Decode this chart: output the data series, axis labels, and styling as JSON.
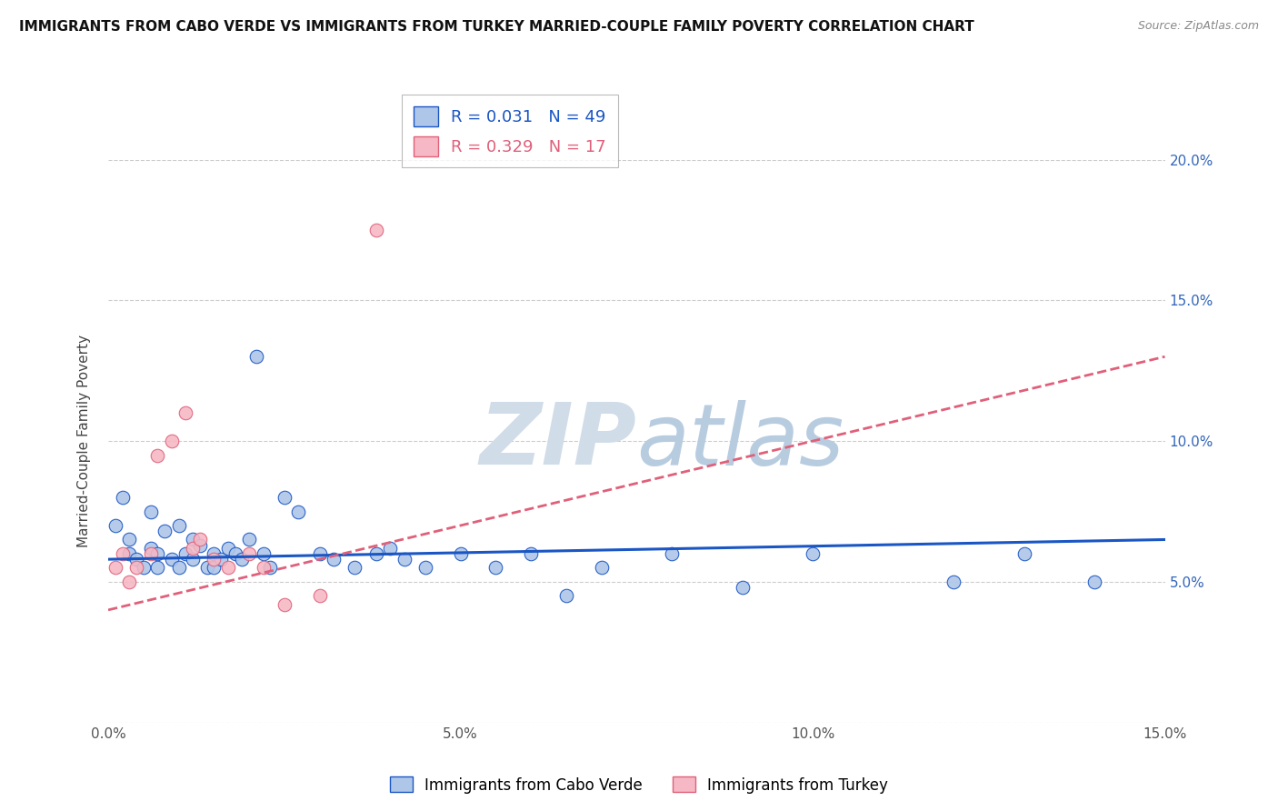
{
  "title": "IMMIGRANTS FROM CABO VERDE VS IMMIGRANTS FROM TURKEY MARRIED-COUPLE FAMILY POVERTY CORRELATION CHART",
  "source": "Source: ZipAtlas.com",
  "ylabel": "Married-Couple Family Poverty",
  "xlabel_legend1": "Immigrants from Cabo Verde",
  "xlabel_legend2": "Immigrants from Turkey",
  "R1": 0.031,
  "N1": 49,
  "R2": 0.329,
  "N2": 17,
  "xlim": [
    0.0,
    0.15
  ],
  "ylim": [
    0.0,
    0.2
  ],
  "x_ticks": [
    0.0,
    0.05,
    0.1,
    0.15
  ],
  "x_tick_labels": [
    "0.0%",
    "5.0%",
    "10.0%",
    "15.0%"
  ],
  "y_ticks": [
    0.0,
    0.05,
    0.1,
    0.15,
    0.2
  ],
  "right_y_tick_labels": [
    "",
    "5.0%",
    "10.0%",
    "15.0%",
    "20.0%"
  ],
  "color_cabo": "#aec6e8",
  "color_turkey": "#f5b8c4",
  "line_color_cabo": "#1a56c4",
  "line_color_turkey": "#e0607a",
  "watermark_zip": "ZIP",
  "watermark_atlas": "atlas",
  "cabo_x": [
    0.001,
    0.002,
    0.003,
    0.003,
    0.004,
    0.005,
    0.006,
    0.006,
    0.007,
    0.007,
    0.008,
    0.009,
    0.01,
    0.01,
    0.011,
    0.012,
    0.012,
    0.013,
    0.014,
    0.015,
    0.015,
    0.016,
    0.017,
    0.018,
    0.019,
    0.02,
    0.021,
    0.022,
    0.023,
    0.025,
    0.027,
    0.03,
    0.032,
    0.035,
    0.038,
    0.04,
    0.042,
    0.045,
    0.05,
    0.055,
    0.06,
    0.065,
    0.07,
    0.08,
    0.09,
    0.1,
    0.12,
    0.13,
    0.14
  ],
  "cabo_y": [
    0.07,
    0.08,
    0.065,
    0.06,
    0.058,
    0.055,
    0.075,
    0.062,
    0.06,
    0.055,
    0.068,
    0.058,
    0.07,
    0.055,
    0.06,
    0.065,
    0.058,
    0.063,
    0.055,
    0.06,
    0.055,
    0.058,
    0.062,
    0.06,
    0.058,
    0.065,
    0.13,
    0.06,
    0.055,
    0.08,
    0.075,
    0.06,
    0.058,
    0.055,
    0.06,
    0.062,
    0.058,
    0.055,
    0.06,
    0.055,
    0.06,
    0.045,
    0.055,
    0.06,
    0.048,
    0.06,
    0.05,
    0.06,
    0.05
  ],
  "turkey_x": [
    0.001,
    0.002,
    0.003,
    0.004,
    0.006,
    0.007,
    0.009,
    0.011,
    0.012,
    0.013,
    0.015,
    0.017,
    0.02,
    0.022,
    0.025,
    0.03,
    0.038
  ],
  "turkey_y": [
    0.055,
    0.06,
    0.05,
    0.055,
    0.06,
    0.095,
    0.1,
    0.11,
    0.062,
    0.065,
    0.058,
    0.055,
    0.06,
    0.055,
    0.042,
    0.045,
    0.175
  ],
  "cabo_line_x": [
    0.0,
    0.15
  ],
  "cabo_line_y": [
    0.058,
    0.065
  ],
  "turkey_line_x": [
    0.0,
    0.15
  ],
  "turkey_line_y": [
    0.04,
    0.13
  ]
}
